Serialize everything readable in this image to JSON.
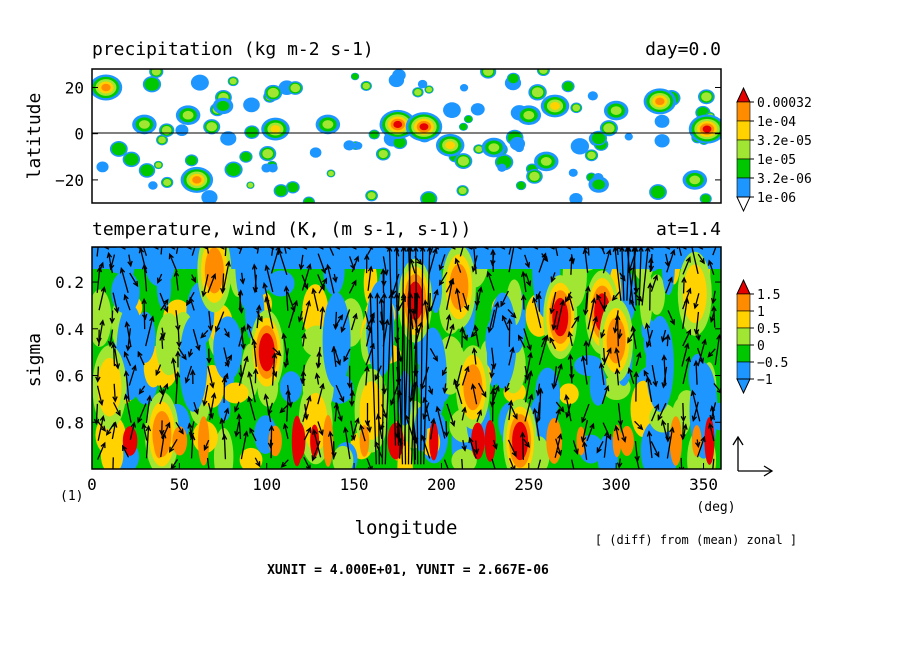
{
  "chart_data": [
    {
      "type": "heatmap",
      "title": "precipitation (kg m-2 s-1)",
      "title_right": "day=0.0",
      "ylabel": "latitude",
      "xlim": [
        0,
        360
      ],
      "ylim": [
        -30,
        28
      ],
      "yticks": [
        "20",
        "0",
        "−20"
      ],
      "ytick_values": [
        20,
        0,
        -20
      ],
      "reference_line": 0,
      "colorbar": {
        "labels": [
          "0.00032",
          "1e-04",
          "3.2e-05",
          "1e-05",
          "3.2e-06",
          "1e-06"
        ],
        "colors": [
          "#ffffff",
          "#1e96ff",
          "#00c800",
          "#a0e632",
          "#ffd200",
          "#ff8c00",
          "#e60000"
        ]
      },
      "blobs": [
        {
          "lon": 8,
          "lat": 20,
          "level": 5
        },
        {
          "lon": 30,
          "lat": 4,
          "level": 3
        },
        {
          "lon": 55,
          "lat": 8,
          "level": 3
        },
        {
          "lon": 75,
          "lat": 12,
          "level": 2
        },
        {
          "lon": 105,
          "lat": 2,
          "level": 4
        },
        {
          "lon": 60,
          "lat": -20,
          "level": 5
        },
        {
          "lon": 135,
          "lat": 4,
          "level": 3
        },
        {
          "lon": 175,
          "lat": 4,
          "level": 6
        },
        {
          "lon": 190,
          "lat": 3,
          "level": 6
        },
        {
          "lon": 205,
          "lat": -5,
          "level": 4
        },
        {
          "lon": 230,
          "lat": -6,
          "level": 3
        },
        {
          "lon": 250,
          "lat": 8,
          "level": 3
        },
        {
          "lon": 265,
          "lat": 12,
          "level": 4
        },
        {
          "lon": 260,
          "lat": -12,
          "level": 3
        },
        {
          "lon": 300,
          "lat": 10,
          "level": 3
        },
        {
          "lon": 325,
          "lat": 14,
          "level": 5
        },
        {
          "lon": 352,
          "lat": 2,
          "level": 6
        },
        {
          "lon": 345,
          "lat": -20,
          "level": 3
        },
        {
          "lon": 290,
          "lat": -22,
          "level": 2
        }
      ]
    },
    {
      "type": "heatmap",
      "title": "temperature, wind (K, (m s-1, s-1))",
      "title_right": "at=1.4",
      "xlabel": "longitude",
      "ylabel": "sigma",
      "xlim": [
        0,
        360
      ],
      "ylim": [
        1.0,
        0.05
      ],
      "xticks": [
        "0",
        "50",
        "100",
        "150",
        "200",
        "250",
        "300",
        "350"
      ],
      "xtick_values": [
        0,
        50,
        100,
        150,
        200,
        250,
        300,
        350
      ],
      "x_unit": "(deg)",
      "yticks": [
        "0.2",
        "0.4",
        "0.6",
        "0.8"
      ],
      "ytick_values": [
        0.2,
        0.4,
        0.6,
        0.8
      ],
      "colorbar": {
        "labels": [
          "1.5",
          "1",
          "0.5",
          "0",
          "−0.5",
          "−1"
        ],
        "colors": [
          "#1e96ff",
          "#00c800",
          "#a0e632",
          "#ffd200",
          "#ff8c00",
          "#e60000"
        ]
      },
      "warm_features": [
        {
          "lon": 100,
          "sigma": 0.5,
          "level": 5
        },
        {
          "lon": 185,
          "sigma": 0.28,
          "level": 5
        },
        {
          "lon": 210,
          "sigma": 0.22,
          "level": 4
        },
        {
          "lon": 268,
          "sigma": 0.35,
          "level": 5
        },
        {
          "lon": 292,
          "sigma": 0.33,
          "level": 5
        },
        {
          "lon": 300,
          "sigma": 0.45,
          "level": 4
        },
        {
          "lon": 245,
          "sigma": 0.88,
          "level": 5
        },
        {
          "lon": 218,
          "sigma": 0.65,
          "level": 4
        },
        {
          "lon": 40,
          "sigma": 0.85,
          "level": 4
        },
        {
          "lon": 128,
          "sigma": 0.8,
          "level": 3
        },
        {
          "lon": 345,
          "sigma": 0.25,
          "level": 3
        },
        {
          "lon": 160,
          "sigma": 0.75,
          "level": 3
        },
        {
          "lon": 70,
          "sigma": 0.15,
          "level": 4
        },
        {
          "lon": 10,
          "sigma": 0.65,
          "level": 3
        }
      ],
      "cold_features": [
        {
          "lon": 22,
          "sigma": 0.5
        },
        {
          "lon": 58,
          "sigma": 0.55
        },
        {
          "lon": 140,
          "sigma": 0.45
        },
        {
          "lon": 165,
          "sigma": 0.4
        },
        {
          "lon": 195,
          "sigma": 0.6
        },
        {
          "lon": 235,
          "sigma": 0.45
        },
        {
          "lon": 325,
          "sigma": 0.55
        },
        {
          "lon": 350,
          "sigma": 0.75
        },
        {
          "lon": 90,
          "sigma": 0.12
        },
        {
          "lon": 260,
          "sigma": 0.15
        }
      ],
      "vector_reference": {
        "xunit": 40.0,
        "yunit": 2.667e-06
      }
    }
  ],
  "figure": {
    "panel_index": "(1)",
    "diff_note": "[ (diff) from (mean) zonal ]",
    "units_note": "XUNIT = 4.000E+01, YUNIT = 2.667E-06"
  }
}
